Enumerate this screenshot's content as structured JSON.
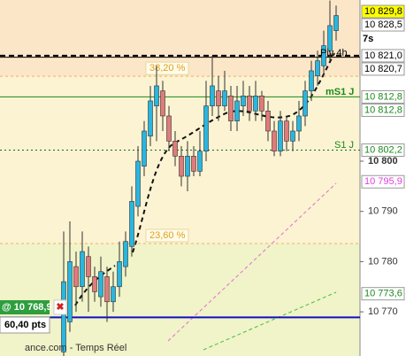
{
  "chart_data": {
    "type": "candlestick",
    "ylim": [
      10761.2,
      10832.1
    ],
    "yticks": [
      {
        "value": 10800,
        "label": "10 800"
      },
      {
        "value": 10790,
        "label": "10 790"
      },
      {
        "value": 10780,
        "label": "10 780"
      },
      {
        "value": 10770,
        "label": "10 770"
      }
    ],
    "up_color": "#29b6e0",
    "down_color": "#e07b7b",
    "open": [
      10762,
      10768,
      10779,
      10775,
      10781,
      10777,
      10773,
      10777,
      10772,
      10775,
      10779,
      10783,
      10791,
      10799,
      10805,
      10811,
      10814,
      10809,
      10804,
      10801,
      10797,
      10801,
      10798,
      10802,
      10811,
      10814,
      10811,
      10813,
      10808,
      10811,
      10813,
      10810,
      10813,
      10810,
      10806,
      10802,
      10808,
      10804,
      10806,
      10809,
      10814,
      10817,
      10819,
      10822,
      10826
    ],
    "close": [
      10776,
      10780,
      10775,
      10782,
      10777,
      10774,
      10778,
      10772,
      10775,
      10780,
      10784,
      10792,
      10800,
      10806,
      10812,
      10815,
      10809,
      10804,
      10801,
      10797,
      10801,
      10798,
      10802,
      10811,
      10815,
      10811,
      10814,
      10808,
      10812,
      10813,
      10810,
      10813,
      10810,
      10806,
      10802,
      10808,
      10804,
      10806,
      10809,
      10814,
      10818,
      10820,
      10823,
      10827,
      10829
    ],
    "high": [
      10786,
      10788,
      10782,
      10786,
      10783,
      10779,
      10781,
      10779,
      10778,
      10784,
      10786,
      10795,
      10803,
      10808,
      10815,
      10819,
      10816,
      10811,
      10806,
      10803,
      10804,
      10803,
      10806,
      10816,
      10821,
      10817,
      10818,
      10815,
      10815,
      10816,
      10815,
      10816,
      10814,
      10812,
      10808,
      10810,
      10809,
      10808,
      10812,
      10816,
      10820,
      10822,
      10826,
      10832,
      10831
    ],
    "low": [
      10760,
      10766,
      10770,
      10772,
      10770,
      10772,
      10771,
      10768,
      10770,
      10773,
      10777,
      10781,
      10789,
      10797,
      10803,
      10804,
      10806,
      10802,
      10799,
      10795,
      10794,
      10797,
      10797,
      10800,
      10809,
      10808,
      10810,
      10806,
      10806,
      10809,
      10808,
      10808,
      10808,
      10804,
      10801,
      10801,
      10802,
      10802,
      10804,
      10807,
      10812,
      10815,
      10817,
      10820,
      10824
    ],
    "price_labels": [
      {
        "value": 10829.8,
        "label": "10 829,8",
        "color": "#000000",
        "background": "#ffff00"
      },
      {
        "value": 10828.5,
        "label": "10 828,5",
        "color": "#000000",
        "background": "#ffffff"
      },
      {
        "value": 10821.0,
        "label": "10 821,0",
        "color": "#000000",
        "background": "#ffffff",
        "line": "dashed",
        "line_color": "#000000"
      },
      {
        "value": 10820.7,
        "label": "10 820,7",
        "color": "#000000",
        "background": "#ffffff",
        "line": "solid",
        "line_color": "#000000"
      },
      {
        "value": 10812.8,
        "label": "10 812,8",
        "color": "#1a8a1a",
        "background": "#ffffff",
        "line": "solid",
        "line_color": "#1a8a1a"
      },
      {
        "value": 10812.8,
        "label": "10 812,8",
        "color": "#1a8a1a",
        "background": "#ffffff"
      },
      {
        "value": 10802.2,
        "label": "10 802,2",
        "color": "#1a8a1a",
        "background": "#ffffff",
        "line": "dotted",
        "line_color": "#1a6a1a"
      },
      {
        "value": 10795.9,
        "label": "10 795,9",
        "color": "#e040e0",
        "background": "#ffffff"
      },
      {
        "value": 10773.6,
        "label": "10 773,6",
        "color": "#1a8a1a",
        "background": "#ffffff"
      }
    ],
    "timer": "7s",
    "fib_levels": [
      {
        "value": 10816.9,
        "label": "38,20 %"
      },
      {
        "value": 10783.6,
        "label": "23,60 %"
      }
    ],
    "annotations": {
      "pivot": "Piv 4h",
      "ms1": "mS1 J",
      "s1": "S1 J"
    },
    "position": {
      "value": 10768.9,
      "label": "@ 10 768,9",
      "points": "60,40 pts"
    },
    "source": "ance.com - Temps Réel"
  }
}
